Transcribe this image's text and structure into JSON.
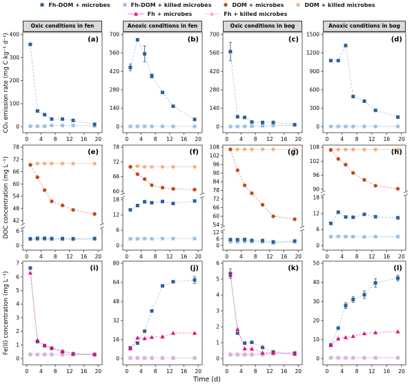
{
  "xlabel": "Time (d)",
  "columns": [
    "Oxic conditions in fen",
    "Anoxic conditions in fen",
    "Oxic conditions in bog",
    "Anoxic conditions in bog"
  ],
  "rows": [
    {
      "ylabel": "CO₂ emission rate (mg C kg⁻¹ d⁻¹)"
    },
    {
      "ylabel": "DOC concentration (mg L⁻¹)"
    },
    {
      "ylabel": "Fe(II) concentration (mg L⁻¹)"
    }
  ],
  "colors": {
    "dark_blue": "#2e6093",
    "light_blue": "#9cc2e5",
    "dark_orange": "#c14a1e",
    "light_orange": "#f6b084",
    "magenta": "#e40980",
    "light_pink": "#efa6d8",
    "header_bg": "#d9d9d9",
    "axis": "#444444"
  },
  "series_styles": {
    "fhdom_microbes": {
      "label": "Fh-DOM + microbes",
      "marker": "square",
      "color": "#2e6093",
      "line": "#a8c8e2",
      "dash": "3,2"
    },
    "fhdom_killed": {
      "label": "Fh-DOM + killed microbes",
      "marker": "square",
      "color": "#9cc2e5",
      "line": "#c3daee",
      "dash": ""
    },
    "dom_microbes": {
      "label": "DOM + microbes",
      "marker": "circle",
      "color": "#c14a1e",
      "line": "#dd9a74",
      "dash": "3,2"
    },
    "dom_killed": {
      "label": "DOM + killed microbes",
      "marker": "circle",
      "color": "#f6b084",
      "line": "#f8cfb4",
      "dash": ""
    },
    "fh_microbes": {
      "label": "Fh + microbes",
      "marker": "triangle",
      "color": "#e40980",
      "line": "#f07cba",
      "dash": "3,2"
    },
    "fh_killed": {
      "label": "Fh + killed microbes",
      "marker": "triangle",
      "color": "#efa6d8",
      "line": "#f7c9e7",
      "dash": ""
    }
  },
  "legend": {
    "rows": [
      [
        "fhdom_microbes",
        "fhdom_killed",
        "dom_microbes",
        "dom_killed"
      ],
      [
        "fh_microbes",
        "fh_killed"
      ]
    ]
  },
  "x_ticks": [
    0,
    4,
    8,
    12,
    16,
    20
  ],
  "days": [
    1,
    3,
    5,
    7,
    10,
    13,
    19
  ],
  "chart_data": [
    {
      "letter": "(a)",
      "row": 0,
      "col": 0,
      "type": "line",
      "condition": "Oxic conditions in fen",
      "y_segments": [
        {
          "min": 0,
          "max": 400,
          "ticks": [
            0,
            100,
            200,
            300,
            400
          ]
        }
      ],
      "series": [
        {
          "key": "fhdom_killed",
          "values": [
            2,
            2,
            2,
            5,
            5,
            5,
            3
          ]
        },
        {
          "key": "fhdom_microbes",
          "values": [
            357,
            68,
            52,
            33,
            33,
            27,
            10
          ]
        }
      ]
    },
    {
      "letter": "(b)",
      "row": 0,
      "col": 1,
      "type": "line",
      "condition": "Anoxic conditions in fen",
      "y_segments": [
        {
          "min": 0,
          "max": 700,
          "ticks": [
            0,
            140,
            280,
            420,
            560,
            700
          ]
        }
      ],
      "series": [
        {
          "key": "fhdom_killed",
          "values": [
            2,
            2,
            2,
            2,
            2,
            2,
            2
          ]
        },
        {
          "key": "fhdom_microbes",
          "values": [
            450,
            660,
            553,
            385,
            260,
            155,
            55
          ],
          "err": [
            25,
            null,
            60,
            15,
            null,
            null,
            null
          ]
        }
      ]
    },
    {
      "letter": "(c)",
      "row": 0,
      "col": 2,
      "type": "line",
      "condition": "Oxic conditions in bog",
      "y_segments": [
        {
          "min": 0,
          "max": 700,
          "ticks": [
            0,
            140,
            280,
            420,
            560,
            700
          ]
        }
      ],
      "series": [
        {
          "key": "fhdom_killed",
          "values": [
            1,
            1,
            2,
            4,
            6,
            8,
            12
          ]
        },
        {
          "key": "fhdom_microbes",
          "values": [
            570,
            75,
            70,
            35,
            32,
            32,
            15
          ],
          "err": [
            70,
            null,
            null,
            null,
            null,
            null,
            null
          ]
        }
      ]
    },
    {
      "letter": "(d)",
      "row": 0,
      "col": 3,
      "type": "line",
      "condition": "Anoxic conditions in bog",
      "y_segments": [
        {
          "min": 0,
          "max": 1500,
          "ticks": [
            0,
            300,
            600,
            900,
            1200,
            1500
          ]
        }
      ],
      "series": [
        {
          "key": "fhdom_killed",
          "values": [
            3,
            3,
            3,
            3,
            3,
            3,
            3
          ]
        },
        {
          "key": "fhdom_microbes",
          "values": [
            1075,
            1075,
            1320,
            490,
            415,
            265,
            155
          ]
        }
      ]
    },
    {
      "letter": "(e)",
      "row": 1,
      "col": 0,
      "type": "line",
      "condition": "Oxic conditions in fen",
      "y_segments": [
        {
          "min": 42,
          "max": 78,
          "ticks": [
            42,
            48,
            54,
            60,
            66,
            72,
            78
          ],
          "frac": [
            0.02,
            0.72
          ]
        },
        {
          "min": 0,
          "max": 6,
          "ticks": [
            0,
            6
          ],
          "frac": [
            0.82,
            0.955
          ]
        }
      ],
      "series": [
        {
          "key": "dom_killed",
          "values": [
            69.5,
            70,
            70,
            70,
            70,
            70,
            70
          ]
        },
        {
          "key": "dom_microbes",
          "values": [
            69.3,
            63.3,
            57,
            51.5,
            49.5,
            47.3,
            45.3
          ]
        },
        {
          "key": "fhdom_killed",
          "values": [
            2.6,
            2.6,
            2.7,
            2.6,
            2.6,
            2.6,
            2.7
          ]
        },
        {
          "key": "fhdom_microbes",
          "values": [
            2.8,
            3,
            3,
            2.9,
            2.9,
            2.8,
            2.9
          ]
        }
      ]
    },
    {
      "letter": "(f)",
      "row": 1,
      "col": 1,
      "type": "line",
      "condition": "Anoxic conditions in fen",
      "y_segments": [
        {
          "min": 60,
          "max": 78,
          "ticks": [
            60,
            66,
            72,
            78
          ],
          "frac": [
            0.02,
            0.44
          ]
        },
        {
          "min": 0,
          "max": 18,
          "ticks": [
            0,
            6,
            12,
            18
          ],
          "frac": [
            0.52,
            0.955
          ]
        }
      ],
      "series": [
        {
          "key": "dom_killed",
          "values": [
            70,
            70.3,
            70,
            70,
            70,
            70,
            70
          ]
        },
        {
          "key": "dom_microbes",
          "values": [
            70,
            67,
            65,
            62.5,
            61.5,
            61,
            60.7
          ]
        },
        {
          "key": "fhdom_killed",
          "values": [
            2.6,
            2.6,
            2.7,
            2.6,
            2.7,
            2.7,
            2.7
          ]
        },
        {
          "key": "fhdom_microbes",
          "values": [
            14,
            15.7,
            17.2,
            16.8,
            17.3,
            16.5,
            17.5
          ]
        }
      ]
    },
    {
      "letter": "(g)",
      "row": 1,
      "col": 2,
      "type": "line",
      "condition": "Oxic conditions in bog",
      "y_segments": [
        {
          "min": 54,
          "max": 108,
          "ticks": [
            54,
            60,
            66,
            72,
            78,
            84,
            90,
            96,
            102,
            108
          ],
          "frac": [
            0.02,
            0.76
          ]
        },
        {
          "min": 0,
          "max": 12,
          "ticks": [
            0,
            6,
            12
          ],
          "frac": [
            0.83,
            0.955
          ]
        }
      ],
      "series": [
        {
          "key": "dom_killed",
          "values": [
            106.5,
            106.5,
            106.5,
            106.5,
            106.5,
            106.5,
            106.5
          ]
        },
        {
          "key": "dom_microbes",
          "values": [
            106.5,
            92,
            81.5,
            76,
            68,
            60,
            58
          ]
        },
        {
          "key": "fhdom_killed",
          "values": [
            3.4,
            3.3,
            3.5,
            3.3,
            3.2,
            2.2,
            3.2
          ]
        },
        {
          "key": "fhdom_microbes",
          "values": [
            5.3,
            5.2,
            5.4,
            4.6,
            4.4,
            3.2,
            4
          ]
        }
      ]
    },
    {
      "letter": "(h)",
      "row": 1,
      "col": 3,
      "type": "line",
      "condition": "Anoxic conditions in bog",
      "y_segments": [
        {
          "min": 90,
          "max": 108,
          "ticks": [
            90,
            96,
            102,
            108
          ],
          "frac": [
            0.02,
            0.42
          ]
        },
        {
          "min": 0,
          "max": 18,
          "ticks": [
            0,
            6,
            12,
            18
          ],
          "frac": [
            0.5,
            0.955
          ]
        }
      ],
      "series": [
        {
          "key": "dom_killed",
          "values": [
            107,
            107,
            107,
            107,
            107,
            107,
            107
          ]
        },
        {
          "key": "dom_microbes",
          "values": [
            106.8,
            103,
            100.5,
            97,
            94,
            91.5,
            90.2
          ]
        },
        {
          "key": "fhdom_killed",
          "values": [
            3.3,
            3.4,
            3.3,
            3.3,
            3.2,
            3.3,
            3.3
          ]
        },
        {
          "key": "fhdom_microbes",
          "values": [
            8.3,
            12.5,
            10.7,
            10.6,
            11.7,
            10.8,
            10.4
          ]
        }
      ]
    },
    {
      "letter": "(i)",
      "row": 2,
      "col": 0,
      "type": "line",
      "condition": "Oxic conditions in fen",
      "y_segments": [
        {
          "min": 0,
          "max": 7,
          "ticks": [
            0,
            1,
            2,
            3,
            4,
            5,
            6,
            7
          ]
        }
      ],
      "series": [
        {
          "key": "fhdom_killed",
          "values": [
            0.3,
            0.3,
            0.3,
            0.3,
            0.28,
            0.28,
            0.28
          ]
        },
        {
          "key": "fh_killed",
          "values": [
            0.32,
            0.3,
            0.32,
            0.3,
            0.3,
            0.3,
            0.3
          ]
        },
        {
          "key": "fhdom_microbes",
          "values": [
            6.65,
            1.25,
            0.95,
            0.75,
            0.5,
            0.35,
            0.3
          ]
        },
        {
          "key": "fh_microbes",
          "values": [
            6.3,
            1.35,
            0.97,
            0.8,
            0.55,
            0.37,
            0.32
          ]
        }
      ]
    },
    {
      "letter": "(j)",
      "row": 2,
      "col": 1,
      "type": "line",
      "condition": "Anoxic conditions in fen",
      "y_segments": [
        {
          "min": 0,
          "max": 80,
          "ticks": [
            0,
            16,
            32,
            48,
            64,
            80
          ]
        }
      ],
      "series": [
        {
          "key": "fhdom_killed",
          "values": [
            0.5,
            0.5,
            0.5,
            0.5,
            0.5,
            0.5,
            0.5
          ]
        },
        {
          "key": "fh_killed",
          "values": [
            0.6,
            0.6,
            0.6,
            0.6,
            0.6,
            0.6,
            0.6
          ]
        },
        {
          "key": "fhdom_microbes",
          "values": [
            9,
            13,
            23,
            40,
            61,
            64.5,
            66
          ],
          "err": [
            null,
            null,
            null,
            null,
            null,
            null,
            3
          ]
        },
        {
          "key": "fh_microbes",
          "values": [
            8.5,
            17.5,
            17,
            18,
            18.5,
            21.5,
            21.5
          ]
        }
      ]
    },
    {
      "letter": "(k)",
      "row": 2,
      "col": 2,
      "type": "line",
      "condition": "Oxic conditions in bog",
      "y_segments": [
        {
          "min": 0,
          "max": 6,
          "ticks": [
            0,
            1,
            2,
            3,
            4,
            5,
            6
          ]
        }
      ],
      "series": [
        {
          "key": "fhdom_killed",
          "values": [
            0.25,
            0.25,
            0.25,
            0.25,
            0.25,
            0.3,
            0.3
          ]
        },
        {
          "key": "fh_killed",
          "values": [
            0.3,
            0.3,
            0.3,
            0.3,
            0.3,
            0.32,
            0.3
          ]
        },
        {
          "key": "fhdom_microbes",
          "values": [
            5.35,
            1.6,
            0.97,
            1.02,
            0.7,
            0.42,
            0.35
          ],
          "err": [
            0.3,
            null,
            null,
            null,
            null,
            null,
            null
          ]
        },
        {
          "key": "fh_microbes",
          "values": [
            5.25,
            1.85,
            0.63,
            0.62,
            0.37,
            0.37,
            0.3
          ]
        }
      ]
    },
    {
      "letter": "(l)",
      "row": 2,
      "col": 3,
      "type": "line",
      "condition": "Anoxic conditions in bog",
      "y_segments": [
        {
          "min": 0,
          "max": 50,
          "ticks": [
            0,
            10,
            20,
            30,
            40,
            50
          ]
        }
      ],
      "series": [
        {
          "key": "fhdom_killed",
          "values": [
            0.4,
            0.4,
            0.4,
            0.4,
            0.4,
            0.4,
            0.4
          ]
        },
        {
          "key": "fh_killed",
          "values": [
            0.5,
            0.5,
            0.5,
            0.5,
            0.5,
            0.5,
            0.5
          ]
        },
        {
          "key": "fhdom_microbes",
          "values": [
            7.2,
            16,
            27.8,
            31,
            33.5,
            39.7,
            42.2
          ],
          "err": [
            null,
            null,
            1.5,
            1.5,
            2,
            2.2,
            1.5
          ]
        },
        {
          "key": "fh_microbes",
          "values": [
            7,
            10.5,
            11.2,
            11.8,
            13.2,
            13.7,
            14.2
          ]
        }
      ]
    }
  ]
}
